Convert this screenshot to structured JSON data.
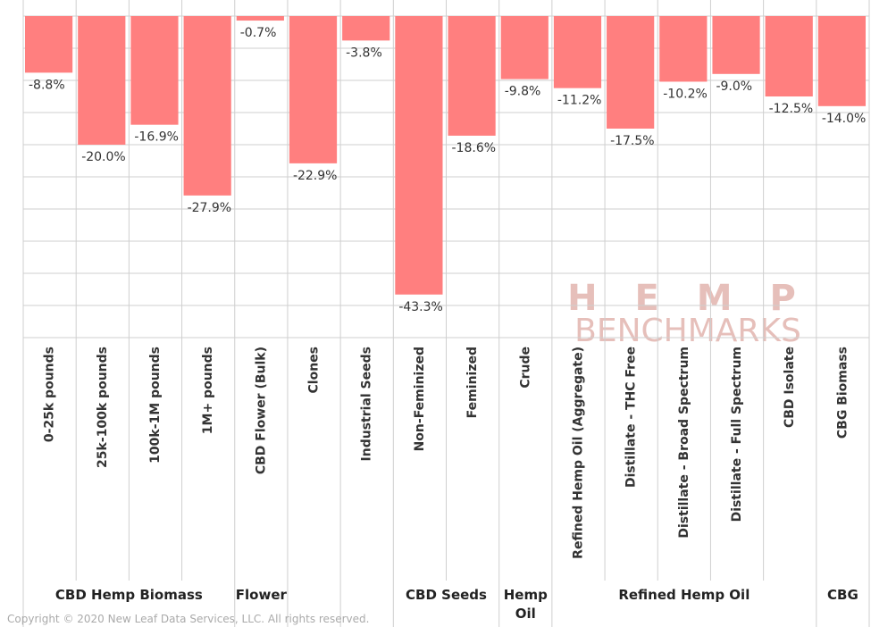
{
  "chart_data": {
    "type": "bar",
    "categories": [
      "0-25k pounds",
      "25k-100k pounds",
      "100k-1M pounds",
      "1M+ pounds",
      "CBD Flower (Bulk)",
      "Clones",
      "Industrial Seeds",
      "Non-Feminized",
      "Feminized",
      "Crude",
      "Refined Hemp Oil (Aggregate)",
      "Distillate - THC Free",
      "Distillate - Broad Spectrum",
      "Distillate - Full Spectrum",
      "CBD Isolate",
      "CBG Biomass"
    ],
    "values": [
      -8.8,
      -20.0,
      -16.9,
      -27.9,
      -0.7,
      -22.9,
      -3.8,
      -43.3,
      -18.6,
      -9.8,
      -11.2,
      -17.5,
      -10.2,
      -9.0,
      -12.5,
      -14.0
    ],
    "value_labels": [
      "-8.8%",
      "-20.0%",
      "-16.9%",
      "-27.9%",
      "-0.7%",
      "-22.9%",
      "-3.8%",
      "-43.3%",
      "-18.6%",
      "-9.8%",
      "-11.2%",
      "-17.5%",
      "-10.2%",
      "-9.0%",
      "-12.5%",
      "-14.0%"
    ],
    "groups": [
      {
        "label": "CBD Hemp Biomass",
        "size": 4
      },
      {
        "label": "Flower",
        "size": 1
      },
      {
        "label": null,
        "size": 1
      },
      {
        "label": null,
        "size": 1
      },
      {
        "label": "CBD Seeds",
        "size": 2
      },
      {
        "label": "Hemp Oil",
        "size": 1
      },
      {
        "label": "Refined Hemp Oil",
        "size": 5
      },
      {
        "label": "CBG",
        "size": 1
      }
    ],
    "color": "#ff7f7f",
    "ylim": [
      -50,
      0
    ],
    "yticks": [
      -50,
      -45,
      -40,
      -35,
      -30,
      -25,
      -20,
      -15,
      -10,
      -5,
      0
    ],
    "grid": true,
    "watermark": [
      "H E M P",
      "BENCHMARKS"
    ],
    "copyright": "Copyright © 2020 New Leaf Data Services, LLC. All rights reserved."
  }
}
